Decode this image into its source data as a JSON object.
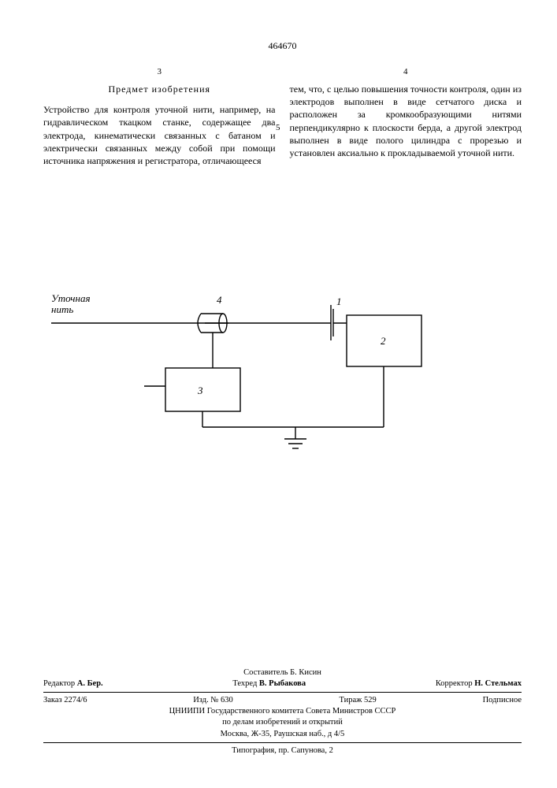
{
  "patent_number": "464670",
  "col_left_no": "3",
  "col_right_no": "4",
  "subject_heading": "Предмет изобретения",
  "line_marker": "5",
  "left_text": "Устройство для контроля уточной нити, на­пример, на гидравлическом ткацком станке, содержащее два электрода, кинематически связанных с батаном и электрически связан­ных между собой при помощи источника на­пряжения и регистратора, отличающееся",
  "right_text": "тем, что, с целью повышения точности контро­ля, один из электродов выполнен в виде сет­чатого диска и расположен за кромкообразу­ющими нитями перпендикулярно к плоскости берда, а другой электрод выполнен в виде по­лого цилиндра с прорезью и установлен акси­ально к прокладываемой уточной нити.",
  "figure": {
    "thread_label": "Уточная\nнить",
    "labels": {
      "n1": "1",
      "n2": "2",
      "n3": "3",
      "n4": "4"
    },
    "stroke": "#000000",
    "stroke_width": 1.4
  },
  "footer": {
    "compiler": "Составитель Б. Кисин",
    "editor_label": "Редактор",
    "editor": "А. Бер.",
    "techred_label": "Техред",
    "techred": "В. Рыбакова",
    "corrector_label": "Корректор",
    "corrector": "Н. Стельмах",
    "order": "Заказ 2274/6",
    "izd": "Изд. № 630",
    "tirazh": "Тираж 529",
    "sub": "Подписное",
    "org1": "ЦНИИПИ Государственного комитета Совета Министров СССР",
    "org2": "по делам изобретений и открытий",
    "addr": "Москва, Ж-35, Раушская наб., д 4/5",
    "typo": "Типография, пр. Сапунова, 2"
  }
}
